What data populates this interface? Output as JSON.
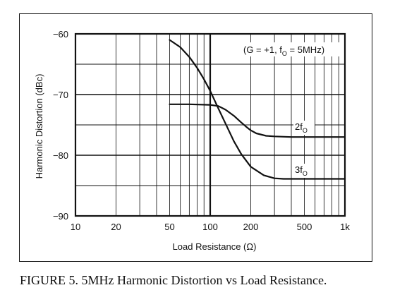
{
  "caption": "FIGURE 5. 5MHz Harmonic Distortion vs Load Resistance.",
  "chart_data": {
    "type": "line",
    "title": "",
    "xlabel": "Load Resistance (Ω)",
    "ylabel": "Harmonic Distortion (dBc)",
    "xscale": "log",
    "xlim": [
      10,
      1000
    ],
    "ylim": [
      -90,
      -60
    ],
    "grid": true,
    "x_ticks": [
      10,
      20,
      50,
      100,
      200,
      500,
      1000
    ],
    "x_tick_labels": [
      "10",
      "20",
      "50",
      "100",
      "200",
      "500",
      "1k"
    ],
    "y_ticks": [
      -60,
      -70,
      -80,
      -90
    ],
    "y_tick_labels": [
      "−60",
      "−70",
      "−80",
      "−90"
    ],
    "annotation": {
      "prefix": "(G = +1, f",
      "sub": "O",
      "suffix": " = 5MHz)"
    },
    "series": [
      {
        "name": "2fO",
        "label_main": "2f",
        "label_sub": "O",
        "x": [
          50,
          70,
          100,
          115,
          130,
          150,
          170,
          185,
          200,
          220,
          260,
          300,
          400,
          500,
          700,
          1000
        ],
        "y": [
          -71.6,
          -71.6,
          -71.7,
          -71.9,
          -72.5,
          -73.5,
          -74.6,
          -75.3,
          -75.9,
          -76.4,
          -76.8,
          -76.9,
          -77.0,
          -77.0,
          -77.0,
          -77.0
        ]
      },
      {
        "name": "3fO",
        "label_main": "3f",
        "label_sub": "O",
        "x": [
          50,
          60,
          70,
          80,
          90,
          100,
          115,
          130,
          150,
          170,
          200,
          250,
          300,
          350,
          400,
          500,
          700,
          1000
        ],
        "y": [
          -61.0,
          -62.2,
          -63.8,
          -65.6,
          -67.5,
          -69.4,
          -72.3,
          -74.8,
          -77.7,
          -79.8,
          -81.9,
          -83.3,
          -83.8,
          -83.9,
          -83.9,
          -83.9,
          -83.9,
          -83.9
        ]
      }
    ]
  }
}
